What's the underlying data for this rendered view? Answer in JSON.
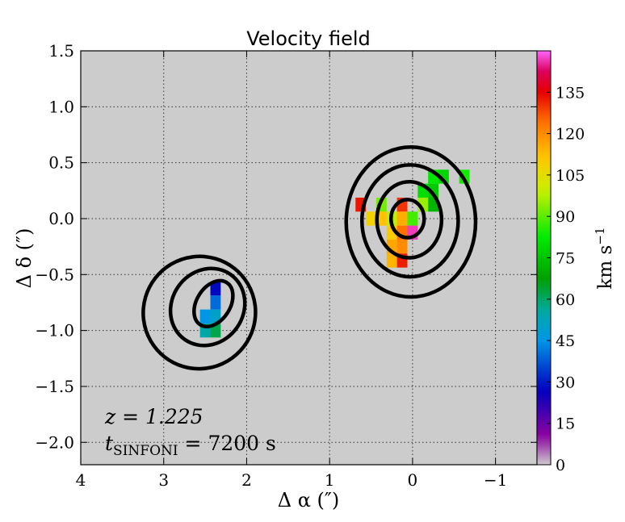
{
  "chart_data": {
    "type": "heatmap",
    "title": "Velocity field",
    "xlabel": "Δ α  (″)",
    "ylabel": "Δ δ  (″)",
    "xlim": [
      4,
      -1.5
    ],
    "ylim": [
      -2.2,
      1.5
    ],
    "x_ticks": [
      4,
      3,
      2,
      1,
      0,
      -1
    ],
    "x_tick_labels": [
      "4",
      "3",
      "2",
      "1",
      "0",
      "−1"
    ],
    "y_ticks": [
      1.5,
      1.0,
      0.5,
      0.0,
      -0.5,
      -1.0,
      -1.5,
      -2.0
    ],
    "y_tick_labels": [
      "1.5",
      "1.0",
      "0.5",
      "0.0",
      "−0.5",
      "−1.0",
      "−1.5",
      "−2.0"
    ],
    "grid": true,
    "background_color": "#cccccc",
    "colorbar": {
      "label": "km s",
      "label_exponent": "−1",
      "range": [
        0,
        150
      ],
      "ticks": [
        0,
        15,
        30,
        45,
        60,
        75,
        90,
        105,
        120,
        135
      ],
      "tick_labels": [
        "0",
        "15",
        "30",
        "45",
        "60",
        "75",
        "90",
        "105",
        "120",
        "135"
      ]
    },
    "annotations": {
      "redshift_label": "z = 1.225",
      "exposure_label": "t",
      "exposure_subscript": "SINFONI",
      "exposure_value": " = 7200 s"
    },
    "pixel_size_arcsec": 0.125,
    "pixels": [
      {
        "x": 0.625,
        "y": 0.125,
        "v": 133
      },
      {
        "x": 0.375,
        "y": 0.125,
        "v": 92
      },
      {
        "x": 0.125,
        "y": 0.125,
        "v": 130
      },
      {
        "x": -0.125,
        "y": 0.25,
        "v": 80
      },
      {
        "x": -0.25,
        "y": 0.25,
        "v": 76
      },
      {
        "x": -0.25,
        "y": 0.375,
        "v": 82
      },
      {
        "x": -0.375,
        "y": 0.375,
        "v": 78
      },
      {
        "x": -0.625,
        "y": 0.375,
        "v": 84
      },
      {
        "x": -0.25,
        "y": 0.125,
        "v": 72
      },
      {
        "x": -0.125,
        "y": 0.125,
        "v": 95
      },
      {
        "x": 0.25,
        "y": 0.0,
        "v": 98
      },
      {
        "x": 0.125,
        "y": 0.0,
        "v": 115
      },
      {
        "x": 0.0,
        "y": 0.0,
        "v": 88
      },
      {
        "x": 0.5,
        "y": 0.0,
        "v": 108
      },
      {
        "x": 0.375,
        "y": 0.0,
        "v": 112
      },
      {
        "x": 0.25,
        "y": -0.125,
        "v": 110
      },
      {
        "x": 0.125,
        "y": -0.125,
        "v": 124
      },
      {
        "x": 0.0,
        "y": -0.125,
        "v": 147
      },
      {
        "x": 0.25,
        "y": -0.25,
        "v": 116
      },
      {
        "x": 0.125,
        "y": -0.25,
        "v": 120
      },
      {
        "x": 0.25,
        "y": -0.375,
        "v": 114
      },
      {
        "x": 0.125,
        "y": -0.375,
        "v": 132
      },
      {
        "x": 2.375,
        "y": -0.625,
        "v": 28
      },
      {
        "x": 2.375,
        "y": -0.75,
        "v": 40
      },
      {
        "x": 2.375,
        "y": -0.875,
        "v": 50
      },
      {
        "x": 2.5,
        "y": -0.875,
        "v": 45
      },
      {
        "x": 2.5,
        "y": -1.0,
        "v": 55
      },
      {
        "x": 2.375,
        "y": -1.0,
        "v": 62
      }
    ],
    "contours": [
      {
        "center": [
          0.02,
          -0.03
        ],
        "rx": 0.78,
        "ry": 0.67,
        "angle_deg": 0
      },
      {
        "center": [
          0.03,
          -0.02
        ],
        "rx": 0.58,
        "ry": 0.5,
        "angle_deg": 0
      },
      {
        "center": [
          0.04,
          -0.01
        ],
        "rx": 0.39,
        "ry": 0.34,
        "angle_deg": 0
      },
      {
        "center": [
          0.06,
          0.0
        ],
        "rx": 0.2,
        "ry": 0.17,
        "angle_deg": 0
      },
      {
        "center": [
          2.57,
          -0.84
        ],
        "rx": 0.68,
        "ry": 0.5,
        "angle_deg": -52
      },
      {
        "center": [
          2.47,
          -0.79
        ],
        "rx": 0.48,
        "ry": 0.32,
        "angle_deg": -55
      },
      {
        "center": [
          2.4,
          -0.76
        ],
        "rx": 0.3,
        "ry": 0.15,
        "angle_deg": -58
      }
    ]
  }
}
